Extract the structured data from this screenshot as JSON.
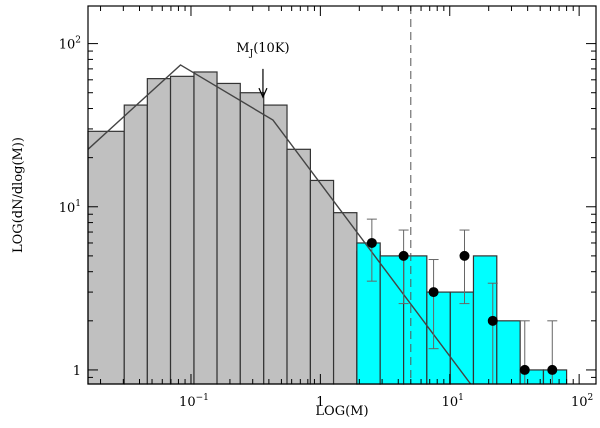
{
  "chart_data": {
    "type": "bar",
    "title": "",
    "xlabel": "LOG(M)",
    "ylabel": "LOG(dN/dlog(M))",
    "xscale": "log",
    "yscale": "log",
    "xlim": [
      0.016,
      135
    ],
    "ylim": [
      0.82,
      170
    ],
    "xticks": [
      {
        "value": 0.1,
        "base": "10",
        "exp": "−1"
      },
      {
        "value": 1,
        "base": "1",
        "exp": ""
      },
      {
        "value": 10,
        "base": "10",
        "exp": "1"
      },
      {
        "value": 100,
        "base": "10",
        "exp": "2"
      }
    ],
    "yticks": [
      {
        "value": 1,
        "base": "1",
        "exp": ""
      },
      {
        "value": 10,
        "base": "10",
        "exp": "1"
      },
      {
        "value": 100,
        "base": "10",
        "exp": "2"
      }
    ],
    "colors": {
      "gray": "#c0c0c0",
      "cyan": "#00ffff",
      "edge": "#333333"
    },
    "series": [
      {
        "style": "gray-histogram",
        "bins": [
          {
            "x0": 0.016,
            "x1": 0.0305,
            "y": 29
          },
          {
            "x0": 0.0305,
            "x1": 0.046,
            "y": 42
          },
          {
            "x0": 0.046,
            "x1": 0.0695,
            "y": 61
          },
          {
            "x0": 0.0695,
            "x1": 0.1055,
            "y": 63
          },
          {
            "x0": 0.1055,
            "x1": 0.159,
            "y": 67
          },
          {
            "x0": 0.159,
            "x1": 0.2405,
            "y": 57
          },
          {
            "x0": 0.2405,
            "x1": 0.365,
            "y": 50
          },
          {
            "x0": 0.365,
            "x1": 0.5525,
            "y": 42
          },
          {
            "x0": 0.5525,
            "x1": 0.8375,
            "y": 22.5
          },
          {
            "x0": 0.8375,
            "x1": 1.265,
            "y": 14.5
          },
          {
            "x0": 1.265,
            "x1": 1.915,
            "y": 9.2
          },
          {
            "x0": 1.915,
            "x1": 2.9,
            "y": 5.3
          },
          {
            "x0": 2.9,
            "x1": 4.4,
            "y": 3.4
          },
          {
            "x0": 4.4,
            "x1": 6.65,
            "y": 2.6
          },
          {
            "x0": 6.65,
            "x1": 10.1,
            "y": 1.3
          }
        ]
      },
      {
        "style": "cyan-histogram",
        "bins": [
          {
            "x0": 1.915,
            "x1": 2.9,
            "y": 6.0
          },
          {
            "x0": 2.9,
            "x1": 4.4,
            "y": 5.0
          },
          {
            "x0": 4.4,
            "x1": 6.65,
            "y": 5.0
          },
          {
            "x0": 6.65,
            "x1": 10.1,
            "y": 3.0
          },
          {
            "x0": 10.1,
            "x1": 15.25,
            "y": 3.0
          },
          {
            "x0": 15.25,
            "x1": 23.1,
            "y": 5.0
          },
          {
            "x0": 23.1,
            "x1": 35,
            "y": 2.0
          },
          {
            "x0": 35,
            "x1": 53,
            "y": 1.0
          },
          {
            "x0": 53,
            "x1": 80,
            "y": 1.0
          }
        ]
      },
      {
        "style": "points-with-errorbars",
        "points": [
          {
            "x": 2.5,
            "y": 6.0,
            "ylo": 3.5,
            "yhi": 8.4
          },
          {
            "x": 4.4,
            "y": 5.0,
            "ylo": 2.55,
            "yhi": 7.2
          },
          {
            "x": 7.5,
            "y": 3.0,
            "ylo": 1.35,
            "yhi": 4.75
          },
          {
            "x": 13,
            "y": 5.0,
            "ylo": 2.55,
            "yhi": 7.2
          },
          {
            "x": 21.5,
            "y": 2.0,
            "ylo": 0.82,
            "yhi": 3.4
          },
          {
            "x": 38,
            "y": 1.0,
            "ylo": 0.82,
            "yhi": 2.0
          },
          {
            "x": 62,
            "y": 1.0,
            "ylo": 0.82,
            "yhi": 2.0
          }
        ]
      },
      {
        "style": "broken-power-law-line",
        "points": [
          {
            "x": 0.016,
            "y": 22.5
          },
          {
            "x": 0.083,
            "y": 74
          },
          {
            "x": 0.43,
            "y": 34
          },
          {
            "x": 14.5,
            "y": 0.82
          }
        ]
      }
    ],
    "reference_line": {
      "x": 5.0,
      "style": "dashed"
    },
    "annotations": [
      {
        "label": "M",
        "subscript": "J",
        "suffix": "(10K)",
        "x": 0.36,
        "arrow_from_y": 70,
        "arrow_to_y": 47
      }
    ],
    "grid": false,
    "legend": "none"
  }
}
